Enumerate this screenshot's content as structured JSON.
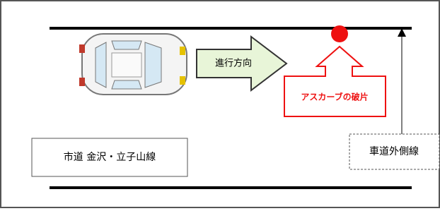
{
  "labels": {
    "direction": "進行方向",
    "debris": "アスカーブの破片",
    "road_name": "市道 金沢・立子山線",
    "edge_line": "車道外側線"
  }
}
